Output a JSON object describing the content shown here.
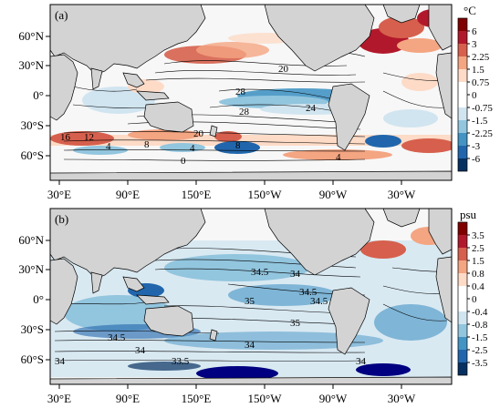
{
  "panels": [
    {
      "label": "(a)",
      "unit": "°C",
      "colorbar_ticks": [
        "6",
        "3",
        "2.25",
        "1.5",
        "0.75",
        "0",
        "-0.75",
        "-1.5",
        "-2.25",
        "-3",
        "-6"
      ],
      "lat_labels": [
        "60°N",
        "30°N",
        "0°",
        "30°S",
        "60°S"
      ],
      "lon_labels": [
        "30°E",
        "90°E",
        "150°E",
        "150°W",
        "90°W",
        "30°W"
      ],
      "contour_labels": [
        "20",
        "28",
        "28",
        "24",
        "20",
        "8",
        "16",
        "12",
        "4",
        "8",
        "4",
        "0",
        "4"
      ]
    },
    {
      "label": "(b)",
      "unit": "psu",
      "colorbar_ticks": [
        "3.5",
        "2.5",
        "1.5",
        "0.8",
        "0.4",
        "0",
        "-0.4",
        "-0.8",
        "-1.5",
        "-2.5",
        "-3.5"
      ],
      "lat_labels": [
        "60°N",
        "30°N",
        "0°",
        "30°S",
        "60°S"
      ],
      "lon_labels": [
        "30°E",
        "90°E",
        "150°E",
        "150°W",
        "90°W",
        "30°W"
      ],
      "contour_labels": [
        "34.5",
        "34",
        "34.5",
        "35",
        "34.5",
        "35",
        "34.5",
        "34",
        "34",
        "33.5",
        "34",
        "34"
      ]
    }
  ],
  "colors": {
    "land": "#d3d3d3",
    "ocean_base": "#f7f7f7",
    "strong_warm": "#b2182b",
    "warm": "#ef8a62",
    "light_warm": "#fddbc7",
    "light_cool": "#d1e5f0",
    "cool": "#67a9cf",
    "strong_cool": "#2166ac",
    "deep_cool": "#000080"
  },
  "colorbar_colors": [
    "#800000",
    "#b2182b",
    "#d6604d",
    "#f4a582",
    "#fddbc7",
    "#ffffff",
    "#ffffff",
    "#d1e5f0",
    "#92c5de",
    "#4393c3",
    "#2166ac",
    "#053061"
  ]
}
